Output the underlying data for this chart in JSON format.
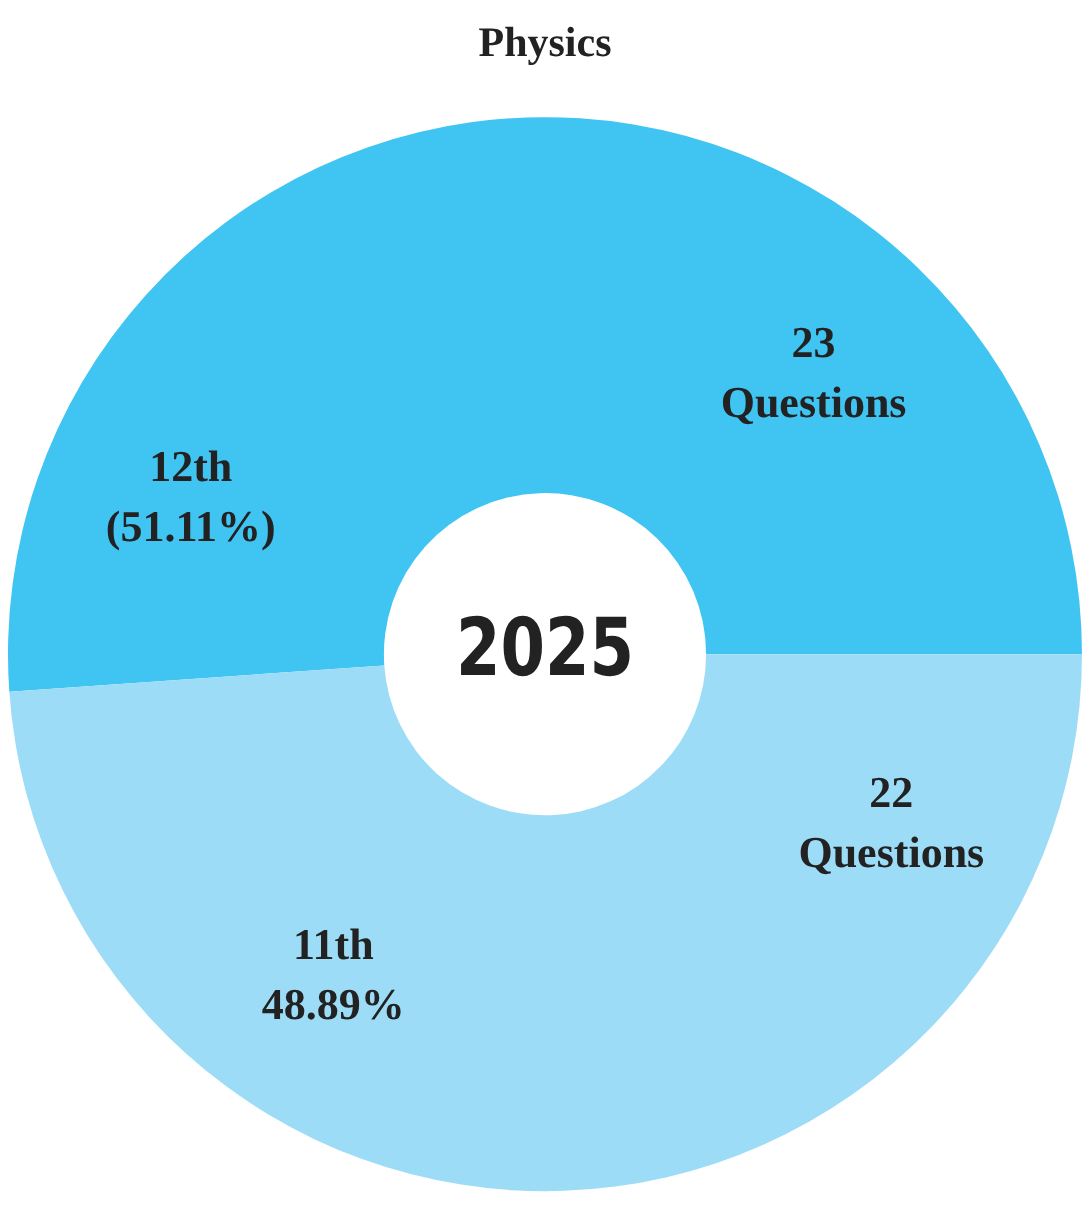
{
  "chart_data": {
    "type": "donut",
    "title": "Physics",
    "categories": [
      "12th",
      "11th"
    ],
    "values": [
      23,
      22
    ],
    "colors": [
      "#40c4f2",
      "#9ddcf7"
    ],
    "value_labels": [
      "23 Questions",
      "22 Questions"
    ],
    "annotations": [
      {
        "text": "(51.11%)",
        "x": "12th"
      },
      {
        "text": "48.89%",
        "x": "11th"
      },
      "2025"
    ],
    "legend": false
  }
}
